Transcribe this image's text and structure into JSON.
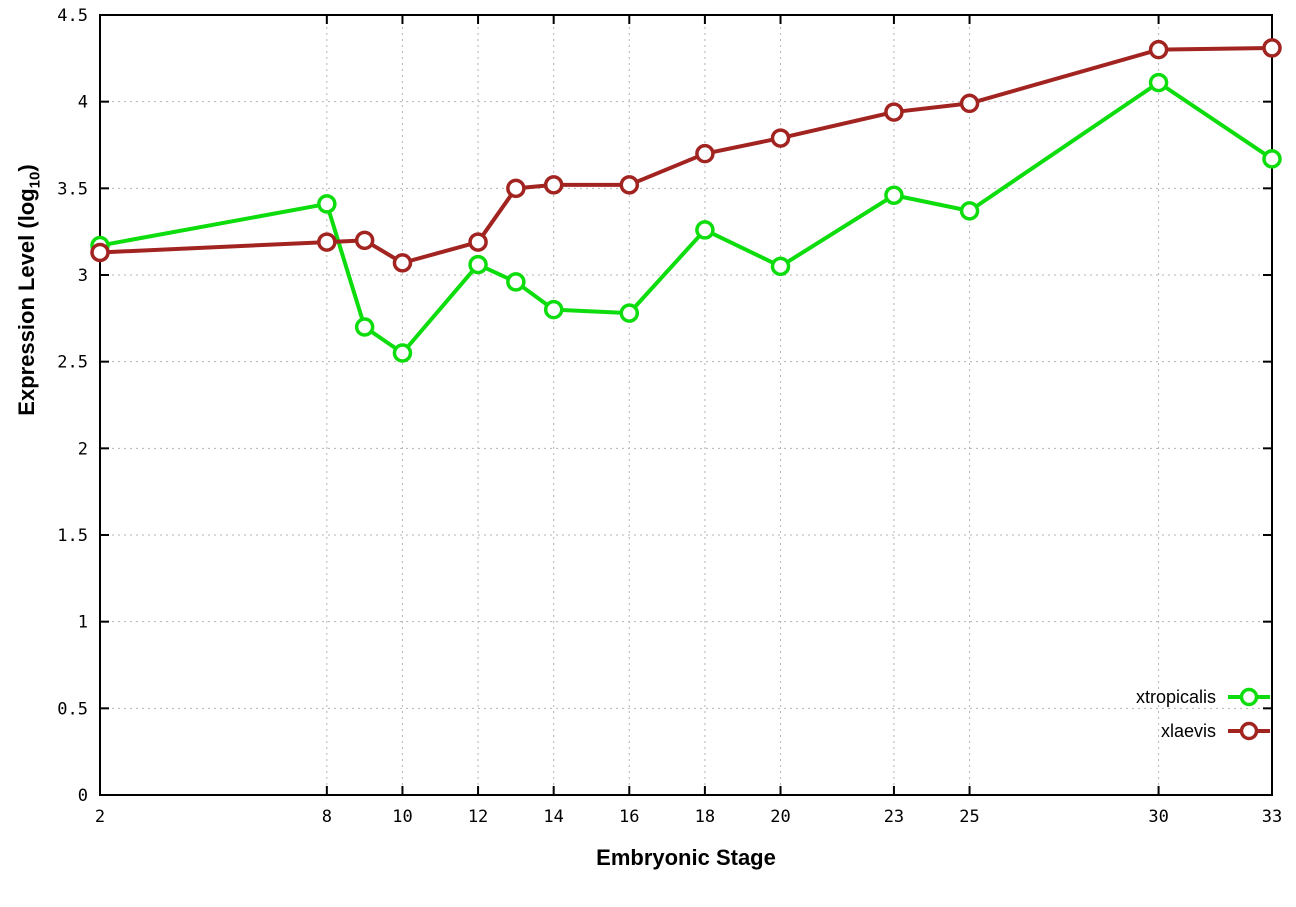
{
  "chart_data": {
    "type": "line",
    "title": "",
    "xlabel": "Embryonic Stage",
    "ylabel": "Expression Level (log10)",
    "ylabel_parts": {
      "pre": "Expression Level (log",
      "sub": "10",
      "post": ")"
    },
    "xlim": [
      2,
      33
    ],
    "ylim": [
      0,
      4.5
    ],
    "grid": true,
    "legend_position": "bottom-right",
    "x_ticks": [
      2,
      8,
      10,
      12,
      14,
      16,
      18,
      20,
      23,
      25,
      30,
      33
    ],
    "x_tick_labels": [
      "2",
      "8",
      "10",
      "12",
      "14",
      "16",
      "18",
      "20",
      "23",
      "25",
      "30",
      "33"
    ],
    "y_ticks": [
      0,
      0.5,
      1,
      1.5,
      2,
      2.5,
      3,
      3.5,
      4,
      4.5
    ],
    "y_tick_labels": [
      "0",
      "0.5",
      "1",
      "1.5",
      "2",
      "2.5",
      "3",
      "3.5",
      "4",
      "4.5"
    ],
    "x": [
      2,
      8,
      9,
      10,
      12,
      13,
      14,
      16,
      18,
      20,
      23,
      25,
      30,
      33
    ],
    "series": [
      {
        "name": "xtropicalis",
        "color": "#0ddc0d",
        "values": [
          3.17,
          3.41,
          2.7,
          2.55,
          3.06,
          2.96,
          2.8,
          2.78,
          3.26,
          3.05,
          3.46,
          3.37,
          4.11,
          3.67
        ]
      },
      {
        "name": "xlaevis",
        "color": "#a22421",
        "values": [
          3.13,
          3.19,
          3.2,
          3.07,
          3.19,
          3.5,
          3.52,
          3.52,
          3.7,
          3.79,
          3.94,
          3.99,
          4.3,
          4.31
        ]
      }
    ],
    "style": {
      "background": "#ffffff",
      "frame_color": "#000000",
      "grid_color": "#b4b4b4",
      "line_width": 4,
      "marker_radius": 8,
      "marker_stroke": 3.5
    }
  }
}
